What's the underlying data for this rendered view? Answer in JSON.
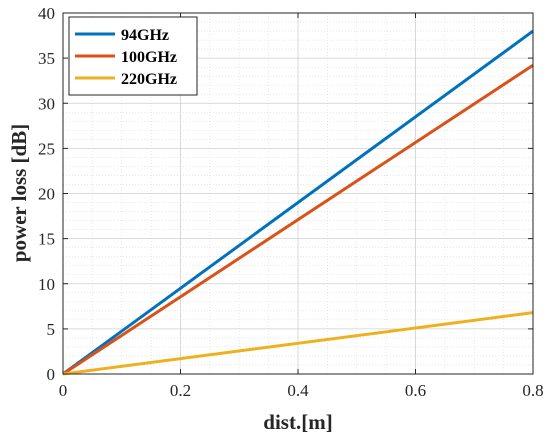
{
  "chart_data": {
    "type": "line",
    "title": "",
    "xlabel": "dist.[m]",
    "ylabel": "power loss [dB]",
    "xlim": [
      0,
      0.8
    ],
    "ylim": [
      0,
      40
    ],
    "x_ticks": [
      0,
      0.2,
      0.4,
      0.6,
      0.8
    ],
    "x_tick_labels": [
      "0",
      "0.2",
      "0.4",
      "0.6",
      "0.8"
    ],
    "y_ticks": [
      0,
      5,
      10,
      15,
      20,
      25,
      30,
      35,
      40
    ],
    "y_tick_labels": [
      "0",
      "5",
      "10",
      "15",
      "20",
      "25",
      "30",
      "35",
      "40"
    ],
    "grid": true,
    "minor_grid": true,
    "legend_position": "top-left",
    "x": [
      0,
      0.8
    ],
    "series": [
      {
        "name": "94GHz",
        "color": "#0072BD",
        "values": [
          0,
          38
        ]
      },
      {
        "name": "100GHz",
        "color": "#D95319",
        "values": [
          0,
          34.2
        ]
      },
      {
        "name": "220GHz",
        "color": "#EDB120",
        "values": [
          0,
          6.8
        ]
      }
    ]
  }
}
